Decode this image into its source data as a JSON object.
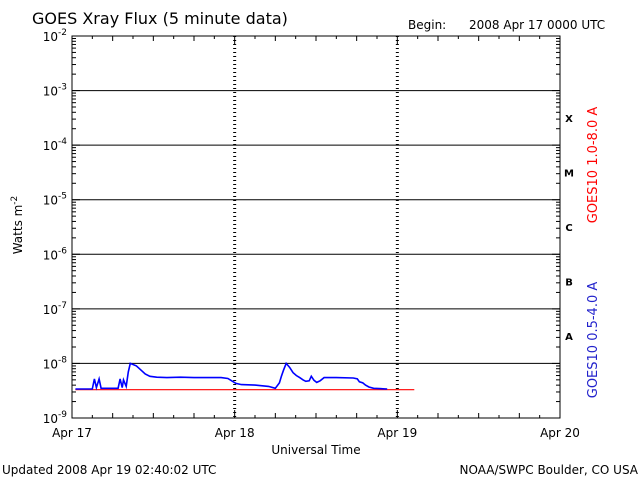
{
  "header": {
    "title": "GOES Xray Flux (5 minute data)",
    "begin_label": "Begin:",
    "begin_value": "2008 Apr 17 0000 UTC"
  },
  "footer": {
    "updated": "Updated 2008 Apr 19 02:40:02 UTC",
    "credit": "NOAA/SWPC Boulder, CO USA"
  },
  "chart_data": {
    "type": "line",
    "title": "GOES Xray Flux (5 minute data)",
    "xlabel": "Universal Time",
    "ylabel_base": "Watts m",
    "ylabel_exp": "-2",
    "xlim_hours": [
      0,
      72
    ],
    "x_ticks": [
      {
        "hours": 0,
        "label": "Apr 17"
      },
      {
        "hours": 24,
        "label": "Apr 18"
      },
      {
        "hours": 48,
        "label": "Apr 19"
      },
      {
        "hours": 72,
        "label": "Apr 20"
      }
    ],
    "yscale": "log",
    "ylim_exp": [
      -9,
      -2
    ],
    "y_ticks": [
      {
        "exp": -9,
        "base": "10",
        "sup": "-9"
      },
      {
        "exp": -8,
        "base": "10",
        "sup": "-8"
      },
      {
        "exp": -7,
        "base": "10",
        "sup": "-7"
      },
      {
        "exp": -6,
        "base": "10",
        "sup": "-6"
      },
      {
        "exp": -5,
        "base": "10",
        "sup": "-5"
      },
      {
        "exp": -4,
        "base": "10",
        "sup": "-4"
      },
      {
        "exp": -3,
        "base": "10",
        "sup": "-3"
      },
      {
        "exp": -2,
        "base": "10",
        "sup": "-2"
      }
    ],
    "flare_classes": [
      {
        "label": "A",
        "exp": -7.5
      },
      {
        "label": "B",
        "exp": -6.5
      },
      {
        "label": "C",
        "exp": -5.5
      },
      {
        "label": "M",
        "exp": -4.5
      },
      {
        "label": "X",
        "exp": -3.5
      }
    ],
    "series": [
      {
        "name": "GOES10 1.0-8.0 A",
        "color": "#ff0000",
        "points": [
          [
            0.5,
            3.3e-09
          ],
          [
            10,
            3.3e-09
          ],
          [
            20,
            3.3e-09
          ],
          [
            30,
            3.3e-09
          ],
          [
            40,
            3.3e-09
          ],
          [
            47,
            3.3e-09
          ],
          [
            50.5,
            3.3e-09
          ]
        ]
      },
      {
        "name": "GOES10 0.5-4.0 A",
        "color": "#0000ff",
        "points": [
          [
            0.5,
            3.4e-09
          ],
          [
            3.0,
            3.4e-09
          ],
          [
            3.3,
            5.2e-09
          ],
          [
            3.6,
            3.6e-09
          ],
          [
            4.0,
            5.2e-09
          ],
          [
            4.3,
            3.5e-09
          ],
          [
            6.8,
            3.5e-09
          ],
          [
            7.1,
            5.2e-09
          ],
          [
            7.4,
            3.6e-09
          ],
          [
            7.6,
            5e-09
          ],
          [
            8.0,
            3.8e-09
          ],
          [
            8.3,
            7e-09
          ],
          [
            8.6,
            1e-08
          ],
          [
            9.5,
            9e-09
          ],
          [
            10.2,
            7.5e-09
          ],
          [
            10.8,
            6.4e-09
          ],
          [
            11.5,
            5.8e-09
          ],
          [
            12.5,
            5.6e-09
          ],
          [
            14,
            5.5e-09
          ],
          [
            16,
            5.6e-09
          ],
          [
            18,
            5.5e-09
          ],
          [
            20,
            5.5e-09
          ],
          [
            22,
            5.5e-09
          ],
          [
            23,
            5.3e-09
          ],
          [
            23.8,
            4.6e-09
          ],
          [
            24.2,
            4.3e-09
          ],
          [
            25,
            4.1e-09
          ],
          [
            27,
            4e-09
          ],
          [
            29,
            3.8e-09
          ],
          [
            30,
            3.5e-09
          ],
          [
            30.6,
            4.4e-09
          ],
          [
            30.9,
            5.8e-09
          ],
          [
            31.2,
            7.5e-09
          ],
          [
            31.6,
            1e-08
          ],
          [
            32.1,
            8.5e-09
          ],
          [
            32.6,
            6.8e-09
          ],
          [
            33.1,
            6e-09
          ],
          [
            33.6,
            5.5e-09
          ],
          [
            34.1,
            5e-09
          ],
          [
            34.5,
            4.7e-09
          ],
          [
            35.0,
            4.8e-09
          ],
          [
            35.3,
            5.8e-09
          ],
          [
            35.7,
            4.9e-09
          ],
          [
            36.1,
            4.5e-09
          ],
          [
            36.6,
            4.8e-09
          ],
          [
            37.2,
            5.5e-09
          ],
          [
            39,
            5.5e-09
          ],
          [
            41.5,
            5.4e-09
          ],
          [
            42.1,
            5.2e-09
          ],
          [
            42.4,
            4.6e-09
          ],
          [
            42.9,
            4.4e-09
          ],
          [
            43.3,
            4e-09
          ],
          [
            43.8,
            3.7e-09
          ],
          [
            44.5,
            3.5e-09
          ],
          [
            46.5,
            3.4e-09
          ]
        ]
      }
    ]
  }
}
